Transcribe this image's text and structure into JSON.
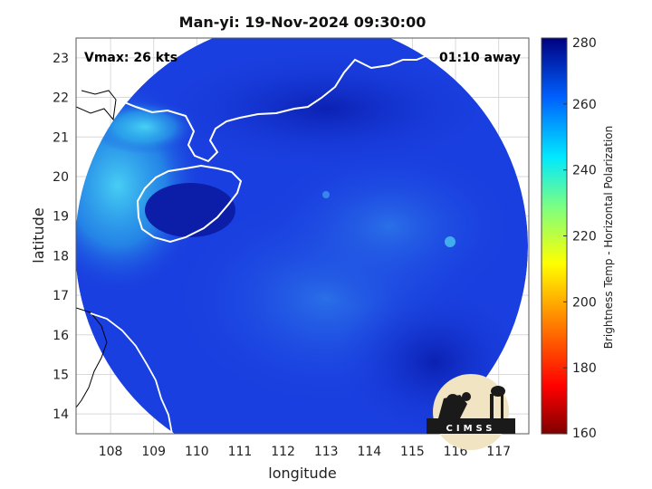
{
  "title": "Man-yi: 19-Nov-2024 09:30:00",
  "corner_left": "Vmax: 26 kts",
  "corner_right": "01:10 away",
  "xaxis": {
    "label": "longitude",
    "range": [
      107.2,
      117.7
    ],
    "ticks": [
      "108",
      "109",
      "110",
      "111",
      "112",
      "113",
      "114",
      "115",
      "116",
      "117"
    ]
  },
  "yaxis": {
    "label": "latitude",
    "range": [
      13.5,
      23.5
    ],
    "ticks": [
      "14",
      "15",
      "16",
      "17",
      "18",
      "19",
      "20",
      "21",
      "22",
      "23"
    ]
  },
  "colorbar": {
    "label": "Brightness Temp - Horizontal Polarization",
    "range": [
      160,
      280
    ],
    "ticks": [
      "160",
      "180",
      "200",
      "220",
      "240",
      "260",
      "280"
    ]
  },
  "logo": {
    "text": "CIMSS"
  },
  "colors": {
    "scan_base": "#1a3fe0",
    "scan_dark": "#0a22b8",
    "scan_cyan": "#39c8ef",
    "land_outline": "#ffffff",
    "coast_outline": "#000000"
  }
}
